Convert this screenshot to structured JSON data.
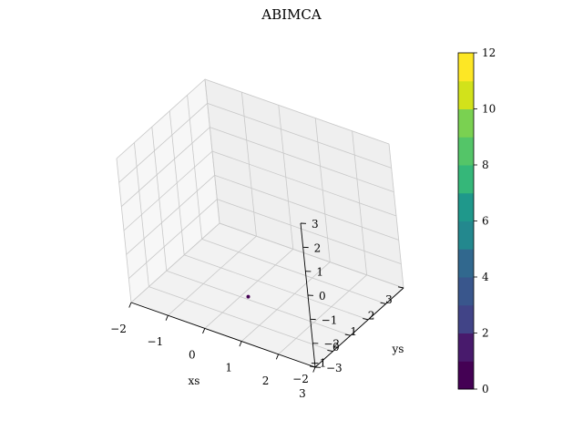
{
  "chart_data": {
    "type": "scatter",
    "projection": "3d",
    "title": "ABIMCA",
    "xlabel": "xs",
    "ylabel": "ys",
    "zlabel": "",
    "xlim": [
      -2,
      3
    ],
    "ylim": [
      -2,
      3
    ],
    "zlim": [
      -3,
      3
    ],
    "x_ticks": [
      "−2",
      "−1",
      "0",
      "1",
      "2",
      "3"
    ],
    "y_ticks": [
      "−2",
      "−1",
      "0",
      "1",
      "2",
      "3"
    ],
    "z_ticks": [
      "−3",
      "−2",
      "−1",
      "0",
      "1",
      "2",
      "3"
    ],
    "grid": true,
    "points": [
      {
        "x": 0.5,
        "y": -0.5,
        "z": -2.4,
        "value": 0
      }
    ],
    "colorbar": {
      "colormap": "viridis",
      "range": [
        0,
        12
      ],
      "levels": 12,
      "ticks": [
        "0",
        "2",
        "4",
        "6",
        "8",
        "10",
        "12"
      ],
      "colors": [
        "#440154",
        "#481a6c",
        "#472f7d",
        "#414487",
        "#39568c",
        "#31688e",
        "#2a788e",
        "#23888e",
        "#1f988b",
        "#22a884",
        "#35b779",
        "#54c568",
        "#7ad151",
        "#a5db36",
        "#d2e21b",
        "#fde725"
      ]
    }
  }
}
